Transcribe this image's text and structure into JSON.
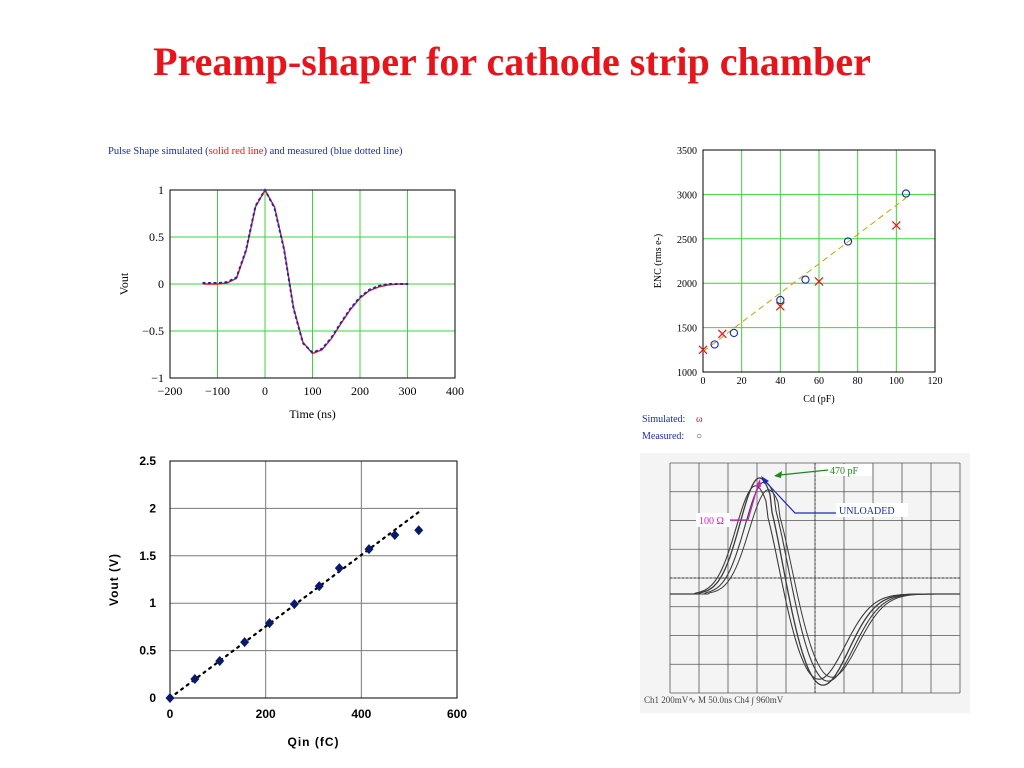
{
  "page": {
    "title": "Preamp-shaper for cathode strip chamber"
  },
  "pulse_caption": {
    "part1": "Pulse Shape simulated (",
    "part2": "solid red line",
    "part3": ") and measured (blue dotted line)"
  },
  "legend": {
    "simulated_label": "Simulated:",
    "simulated_symbol": "ω",
    "measured_label": "Measured:",
    "measured_symbol": "○"
  },
  "scope": {
    "label_470": "470 pF",
    "label_100": "100 Ω",
    "label_unloaded": "UNLOADED",
    "readout": "Ch1  200mV∿        M 50.0ns  Ch4 ∫  960mV"
  },
  "chart_data": [
    {
      "type": "line",
      "xlabel": "Time (ns)",
      "ylabel": "Vout",
      "xlim": [
        -200,
        400
      ],
      "ylim": [
        -1,
        1
      ],
      "xticks": [
        "−200",
        "−100",
        "0",
        "100",
        "200",
        "300",
        "400"
      ],
      "yticks": [
        "1",
        "0.5",
        "0",
        "−0.5",
        "−1"
      ],
      "grid": true,
      "series": [
        {
          "name": "simulated",
          "style": "solid",
          "color": "#e8141b",
          "x": [
            -130,
            -100,
            -80,
            -60,
            -40,
            -20,
            0,
            20,
            40,
            60,
            80,
            100,
            120,
            140,
            160,
            180,
            200,
            220,
            240,
            260,
            280,
            300
          ],
          "y": [
            0,
            0,
            0.01,
            0.06,
            0.35,
            0.82,
            1.0,
            0.82,
            0.38,
            -0.25,
            -0.62,
            -0.74,
            -0.7,
            -0.58,
            -0.42,
            -0.27,
            -0.15,
            -0.07,
            -0.03,
            -0.01,
            0,
            0
          ]
        },
        {
          "name": "measured",
          "style": "dotted",
          "color": "#1a2bb0",
          "x": [
            -130,
            -100,
            -80,
            -60,
            -40,
            -20,
            0,
            20,
            40,
            60,
            80,
            100,
            120,
            140,
            160,
            180,
            200,
            220,
            240,
            260,
            280,
            300
          ],
          "y": [
            0.01,
            0.01,
            0.02,
            0.07,
            0.36,
            0.83,
            1.0,
            0.81,
            0.37,
            -0.26,
            -0.63,
            -0.73,
            -0.69,
            -0.57,
            -0.41,
            -0.26,
            -0.14,
            -0.06,
            -0.02,
            0,
            0,
            0
          ]
        }
      ]
    },
    {
      "type": "scatter",
      "xlabel": "Cd (pF)",
      "ylabel": "ENC (rms e-)",
      "xlim": [
        0,
        120
      ],
      "ylim": [
        1000,
        3500
      ],
      "xticks": [
        "0",
        "20",
        "40",
        "60",
        "80",
        "100",
        "120"
      ],
      "yticks": [
        "3500",
        "3000",
        "2500",
        "2000",
        "1500",
        "1000"
      ],
      "grid": true,
      "series": [
        {
          "name": "Simulated",
          "marker": "x",
          "color": "#e8141b",
          "x": [
            0,
            10,
            40,
            60,
            100
          ],
          "y": [
            1250,
            1430,
            1740,
            2020,
            2650
          ]
        },
        {
          "name": "Measured",
          "marker": "o",
          "color": "#1a2bb0",
          "x": [
            6,
            16,
            40,
            53,
            75,
            105
          ],
          "y": [
            1310,
            1440,
            1810,
            2040,
            2470,
            3010
          ]
        }
      ],
      "fit_line": {
        "x": [
          0,
          105
        ],
        "y": [
          1230,
          2960
        ],
        "color": "#c8a000"
      }
    },
    {
      "type": "scatter",
      "xlabel": "Qin (fC)",
      "ylabel": "Vout (V)",
      "xlim": [
        0,
        600
      ],
      "ylim": [
        0,
        2.5
      ],
      "xticks": [
        "0",
        "200",
        "400",
        "600"
      ],
      "yticks": [
        "2.5",
        "2",
        "1.5",
        "1",
        "0.5",
        "0"
      ],
      "grid": true,
      "series": [
        {
          "name": "data",
          "marker": "diamond",
          "color": "#0a1a6b",
          "x": [
            0,
            52,
            104,
            156,
            208,
            260,
            312,
            354,
            416,
            470,
            520
          ],
          "y": [
            0,
            0.2,
            0.39,
            0.59,
            0.79,
            0.99,
            1.18,
            1.37,
            1.57,
            1.72,
            1.77
          ]
        }
      ],
      "fit_line": {
        "x": [
          0,
          525
        ],
        "y": [
          0,
          1.98
        ],
        "color": "#000000"
      }
    }
  ]
}
